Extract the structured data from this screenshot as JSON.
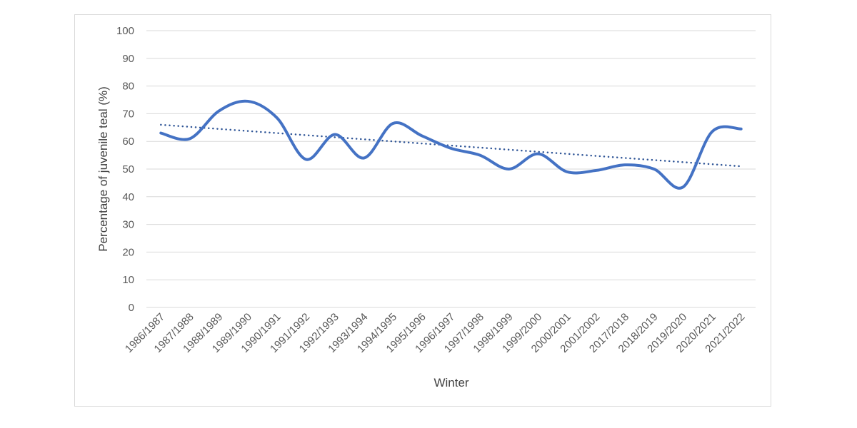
{
  "chart_data": {
    "type": "line",
    "title": "",
    "xlabel": "Winter",
    "ylabel": "Percentage of juvenile teal (%)",
    "ylim": [
      0,
      100
    ],
    "yticks": [
      0,
      10,
      20,
      30,
      40,
      50,
      60,
      70,
      80,
      90,
      100
    ],
    "grid": true,
    "legend": null,
    "categories": [
      "1986/1987",
      "1987/1988",
      "1988/1989",
      "1989/1990",
      "1990/1991",
      "1991/1992",
      "1992/1993",
      "1993/1994",
      "1994/1995",
      "1995/1996",
      "1996/1997",
      "1997/1998",
      "1998/1999",
      "1999/2000",
      "2000/2001",
      "2001/2002",
      "2017/2018",
      "2018/2019",
      "2019/2020",
      "2020/2021",
      "2021/2022"
    ],
    "series": [
      {
        "name": "Percentage of juvenile teal",
        "style": "smoothed-solid",
        "color": "#4472c4",
        "values": [
          63,
          61,
          71,
          74.5,
          68.5,
          53.5,
          62.5,
          54,
          66.5,
          62,
          57.5,
          55,
          50,
          55.5,
          49,
          49.5,
          51.5,
          50,
          43.5,
          63.5,
          64.5
        ]
      },
      {
        "name": "Linear trend",
        "style": "dotted",
        "color": "#2f5597",
        "values": [
          66,
          51
        ]
      }
    ]
  },
  "colors": {
    "line": "#4472c4",
    "trend": "#2f5597",
    "grid": "#d9d9d9",
    "frame": "#d9d9d9",
    "text": "#595959"
  }
}
